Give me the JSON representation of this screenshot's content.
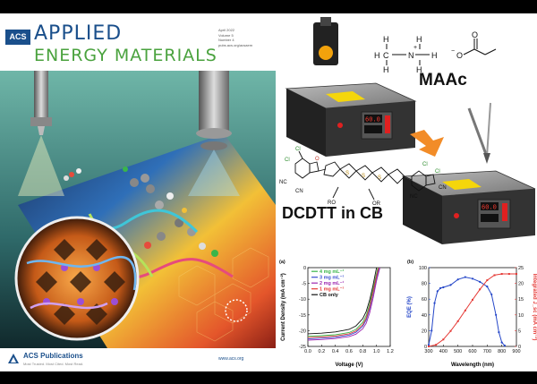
{
  "cover": {
    "acs_badge": "ACS",
    "journal_line1": "APPLIED",
    "journal_line2": "ENERGY MATERIALS",
    "issue_lines": [
      "April 2022",
      "Volume 5",
      "Number 4",
      "pubs.acs.org/acsaem"
    ],
    "publisher": "ACS Publications",
    "tagline": "Most Trusted. Most Cited. Most Read.",
    "website": "www.acs.org",
    "colors": {
      "journal_blue": "#1a4f8b",
      "journal_green": "#4aa23e"
    }
  },
  "scheme": {
    "label_maac": "MAAc",
    "label_dcdtt": "DCDTT in CB",
    "hotplate_display_1": "60.0",
    "hotplate_display_2": "60.0",
    "chem_labels": {
      "cl": "Cl",
      "cn": "CN",
      "nc": "NC",
      "o": "O",
      "s": "S",
      "ro": "RO",
      "or": "OR",
      "h": "H",
      "c": "C",
      "n": "N",
      "plus": "+",
      "minus": "−"
    }
  },
  "chart_data": [
    {
      "type": "line",
      "panel_label": "(a)",
      "xlabel": "Voltage (V)",
      "ylabel": "Current Density (mA cm⁻²)",
      "xlim": [
        0,
        1.2
      ],
      "ylim": [
        -25,
        0
      ],
      "xticks": [
        "0.0",
        "0.2",
        "0.4",
        "0.6",
        "0.8",
        "1.0",
        "1.2"
      ],
      "yticks": [
        "0",
        "-5",
        "-10",
        "-15",
        "-20",
        "-25"
      ],
      "legend_position": "top-left",
      "series": [
        {
          "name": "4 mg mL⁻¹",
          "color": "#3ab54a",
          "jsc": -21.8,
          "voc": 1.02,
          "x": [
            0,
            0.2,
            0.4,
            0.6,
            0.7,
            0.8,
            0.85,
            0.9,
            0.95,
            1.0,
            1.02,
            1.05
          ],
          "y": [
            -21.8,
            -21.6,
            -21.3,
            -20.6,
            -19.6,
            -17.4,
            -15.2,
            -11.6,
            -6.8,
            -1.8,
            0,
            2
          ]
        },
        {
          "name": "3 mg mL⁻¹",
          "color": "#3a4fd0",
          "jsc": -22.6,
          "voc": 1.04,
          "x": [
            0,
            0.2,
            0.4,
            0.6,
            0.7,
            0.8,
            0.85,
            0.9,
            0.95,
            1.0,
            1.04,
            1.07
          ],
          "y": [
            -22.6,
            -22.4,
            -22.1,
            -21.4,
            -20.5,
            -18.6,
            -16.6,
            -13.2,
            -8.4,
            -3.2,
            0,
            2
          ]
        },
        {
          "name": "2 mg mL⁻¹",
          "color": "#9c27b0",
          "jsc": -23.0,
          "voc": 1.05,
          "x": [
            0,
            0.2,
            0.4,
            0.6,
            0.7,
            0.8,
            0.85,
            0.9,
            0.95,
            1.0,
            1.05,
            1.08
          ],
          "y": [
            -23.0,
            -22.8,
            -22.5,
            -21.9,
            -21.1,
            -19.4,
            -17.6,
            -14.4,
            -9.8,
            -4.2,
            0,
            2
          ]
        },
        {
          "name": "1 mg mL⁻¹",
          "color": "#e53935",
          "jsc": -22.2,
          "voc": 1.03,
          "x": [
            0,
            0.2,
            0.4,
            0.6,
            0.7,
            0.8,
            0.85,
            0.9,
            0.95,
            1.0,
            1.03,
            1.06
          ],
          "y": [
            -22.2,
            -22.0,
            -21.7,
            -21.0,
            -20.1,
            -18.1,
            -16.0,
            -12.5,
            -7.8,
            -2.6,
            0,
            2
          ]
        },
        {
          "name": "CB only",
          "color": "#111111",
          "jsc": -21.0,
          "voc": 1.0,
          "x": [
            0,
            0.2,
            0.4,
            0.6,
            0.7,
            0.8,
            0.85,
            0.9,
            0.95,
            1.0,
            1.03
          ],
          "y": [
            -21.0,
            -20.8,
            -20.4,
            -19.6,
            -18.5,
            -16.2,
            -13.9,
            -10.3,
            -5.6,
            0,
            2
          ]
        }
      ]
    },
    {
      "type": "line",
      "panel_label": "(b)",
      "xlabel": "Wavelength (nm)",
      "ylabel": "EQE (%)",
      "ylabel_right": "Integrated J_sc (mA cm⁻²)",
      "xlim": [
        300,
        900
      ],
      "ylim": [
        0,
        100
      ],
      "ylim_right": [
        0,
        25
      ],
      "xticks": [
        "300",
        "400",
        "500",
        "600",
        "700",
        "800",
        "900"
      ],
      "yticks": [
        "0",
        "20",
        "40",
        "60",
        "80",
        "100"
      ],
      "yticks_right": [
        "0",
        "5",
        "10",
        "15",
        "20",
        "25"
      ],
      "series": [
        {
          "name": "EQE",
          "color": "#2446c8",
          "axis": "left",
          "x": [
            300,
            320,
            340,
            360,
            380,
            400,
            450,
            500,
            550,
            600,
            650,
            700,
            730,
            760,
            780,
            800,
            820
          ],
          "y": [
            2,
            20,
            55,
            70,
            74,
            75,
            78,
            85,
            88,
            86,
            82,
            76,
            66,
            40,
            18,
            5,
            1
          ]
        },
        {
          "name": "Integrated Jsc",
          "color": "#e53935",
          "axis": "right",
          "x": [
            300,
            350,
            400,
            450,
            500,
            550,
            600,
            650,
            700,
            750,
            800,
            850,
            900
          ],
          "y": [
            0,
            0.5,
            2.2,
            4.9,
            8.0,
            11.4,
            14.8,
            18.1,
            21.0,
            22.6,
            23.0,
            23.0,
            23.0
          ]
        }
      ]
    }
  ]
}
